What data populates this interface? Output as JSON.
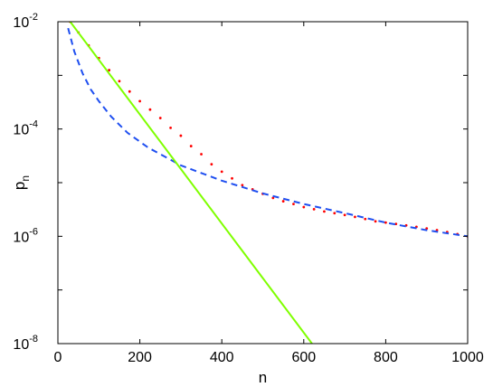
{
  "chart_data": {
    "type": "scatter",
    "title": "",
    "xlabel": "n",
    "ylabel_main": "p",
    "ylabel_sub": "n",
    "xlim": [
      0,
      1000
    ],
    "ylim": [
      1e-08,
      0.01
    ],
    "yscale": "log",
    "grid": false,
    "x_ticks": [
      {
        "value": 0,
        "label": "0"
      },
      {
        "value": 200,
        "label": "200"
      },
      {
        "value": 400,
        "label": "400"
      },
      {
        "value": 600,
        "label": "600"
      },
      {
        "value": 800,
        "label": "800"
      },
      {
        "value": 1000,
        "label": "1000"
      }
    ],
    "y_ticks": [
      {
        "value": 0.01,
        "base": "10",
        "exp": "-2"
      },
      {
        "value": 0.0001,
        "base": "10",
        "exp": "-4"
      },
      {
        "value": 1e-06,
        "base": "10",
        "exp": "-6"
      },
      {
        "value": 1e-08,
        "base": "10",
        "exp": "-8"
      }
    ],
    "series": [
      {
        "style": "dotted-points",
        "color": "#ff0000",
        "x": [
          30,
          50,
          75,
          100,
          125,
          150,
          175,
          200,
          225,
          250,
          275,
          300,
          325,
          350,
          375,
          400,
          425,
          450,
          475,
          500,
          525,
          550,
          575,
          600,
          625,
          650,
          675,
          700,
          725,
          750,
          775,
          800,
          825,
          850,
          875,
          900,
          925,
          950,
          975,
          1000
        ],
        "y": [
          0.01,
          0.0063,
          0.0036,
          0.0021,
          0.00125,
          0.00078,
          0.0005,
          0.00033,
          0.00023,
          0.00016,
          0.000105,
          7.5e-05,
          4.8e-05,
          3.4e-05,
          2.2e-05,
          1.6e-05,
          1.2e-05,
          9e-06,
          7.5e-06,
          6.2e-06,
          5.2e-06,
          4.5e-06,
          4e-06,
          3.5e-06,
          3.2e-06,
          2.9e-06,
          2.7e-06,
          2.5e-06,
          2.3e-06,
          2.1e-06,
          1.9e-06,
          1.8e-06,
          1.7e-06,
          1.6e-06,
          1.5e-06,
          1.4e-06,
          1.3e-06,
          1.2e-06,
          1.1e-06,
          1e-06
        ]
      },
      {
        "style": "dashed-line",
        "color": "#1f4ff0",
        "x": [
          25,
          40,
          60,
          80,
          100,
          130,
          170,
          220,
          300,
          400,
          500,
          600,
          700,
          800,
          900,
          1000
        ],
        "y": [
          0.0076,
          0.0028,
          0.0011,
          0.00055,
          0.00033,
          0.00017,
          8.5e-05,
          4.5e-05,
          2.1e-05,
          1.09e-05,
          6.3e-06,
          4e-06,
          2.7e-06,
          1.8e-06,
          1.3e-06,
          1e-06
        ]
      },
      {
        "style": "solid-line",
        "color": "#7fff00",
        "x": [
          30,
          620
        ],
        "y": [
          0.01,
          1e-08
        ]
      }
    ]
  }
}
